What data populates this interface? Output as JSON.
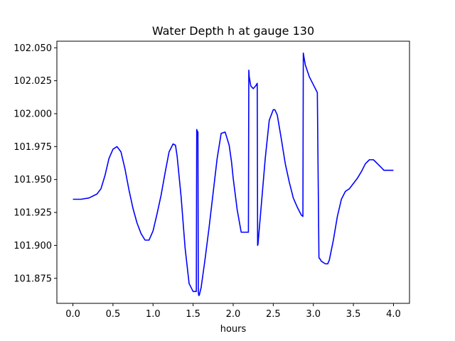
{
  "chart_data": {
    "type": "line",
    "title": "Water Depth h at gauge 130",
    "xlabel": "hours",
    "ylabel": "",
    "xlim": [
      -0.2,
      4.2
    ],
    "ylim": [
      101.856,
      102.055
    ],
    "x_ticks": [
      0.0,
      0.5,
      1.0,
      1.5,
      2.0,
      2.5,
      3.0,
      3.5,
      4.0
    ],
    "x_tick_labels": [
      "0.0",
      "0.5",
      "1.0",
      "1.5",
      "2.0",
      "2.5",
      "3.0",
      "3.5",
      "4.0"
    ],
    "y_ticks": [
      101.875,
      101.9,
      101.925,
      101.95,
      101.975,
      102.0,
      102.025,
      102.05
    ],
    "y_tick_labels": [
      "101.875",
      "101.900",
      "101.925",
      "101.950",
      "101.975",
      "102.000",
      "102.025",
      "102.050"
    ],
    "grid": false,
    "legend": "none",
    "series": [
      {
        "color": "#0000ff",
        "x": [
          0.0,
          0.1,
          0.2,
          0.3,
          0.35,
          0.4,
          0.45,
          0.5,
          0.55,
          0.6,
          0.65,
          0.7,
          0.75,
          0.8,
          0.85,
          0.9,
          0.95,
          1.0,
          1.05,
          1.1,
          1.15,
          1.2,
          1.25,
          1.28,
          1.3,
          1.35,
          1.4,
          1.45,
          1.5,
          1.54,
          1.545,
          1.55,
          1.56,
          1.565,
          1.57,
          1.575,
          1.58,
          1.6,
          1.65,
          1.7,
          1.75,
          1.8,
          1.85,
          1.9,
          1.95,
          1.98,
          2.0,
          2.05,
          2.1,
          2.15,
          2.19,
          2.195,
          2.2,
          2.22,
          2.25,
          2.28,
          2.3,
          2.305,
          2.31,
          2.315,
          2.35,
          2.4,
          2.45,
          2.5,
          2.52,
          2.55,
          2.6,
          2.65,
          2.7,
          2.75,
          2.8,
          2.85,
          2.87,
          2.875,
          2.88,
          2.9,
          2.95,
          3.0,
          3.05,
          3.07,
          3.075,
          3.08,
          3.1,
          3.15,
          3.18,
          3.2,
          3.25,
          3.3,
          3.35,
          3.4,
          3.45,
          3.5,
          3.55,
          3.6,
          3.65,
          3.7,
          3.75,
          3.8,
          3.85,
          3.88,
          3.9,
          3.95,
          4.0
        ],
        "y": [
          101.935,
          101.935,
          101.936,
          101.939,
          101.943,
          101.953,
          101.966,
          101.973,
          101.975,
          101.971,
          101.958,
          101.942,
          101.928,
          101.917,
          101.909,
          101.904,
          101.904,
          101.911,
          101.924,
          101.938,
          101.955,
          101.971,
          101.977,
          101.976,
          101.968,
          101.937,
          101.898,
          101.871,
          101.865,
          101.865,
          101.988,
          101.987,
          101.986,
          101.865,
          101.862,
          101.862,
          101.863,
          101.868,
          101.89,
          101.914,
          101.94,
          101.966,
          101.985,
          101.986,
          101.976,
          101.963,
          101.951,
          101.927,
          101.91,
          101.91,
          101.91,
          102.033,
          102.028,
          102.021,
          102.019,
          102.021,
          102.023,
          101.9,
          101.901,
          101.905,
          101.93,
          101.966,
          101.995,
          102.003,
          102.003,
          101.999,
          101.981,
          101.962,
          101.948,
          101.936,
          101.929,
          101.923,
          101.922,
          102.046,
          102.044,
          102.037,
          102.028,
          102.022,
          102.016,
          101.891,
          101.89,
          101.89,
          101.888,
          101.886,
          101.886,
          101.889,
          101.904,
          101.922,
          101.935,
          101.941,
          101.943,
          101.947,
          101.951,
          101.956,
          101.962,
          101.965,
          101.965,
          101.962,
          101.959,
          101.957,
          101.957,
          101.957,
          101.957
        ]
      }
    ]
  }
}
